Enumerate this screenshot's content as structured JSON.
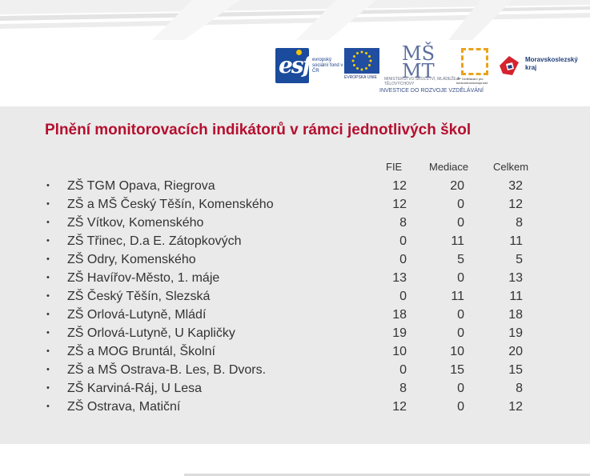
{
  "header": {
    "esf_logo": {
      "mark": "esf",
      "text": "evropský sociální fond v ČR"
    },
    "eu_logo": {
      "label": "EVROPSKÁ UNIE"
    },
    "msmt_logo": {
      "text": "MINISTERSTVO ŠKOLSTVÍ, MLÁDEŽE A TĚLOVÝCHOVY",
      "tagline": "INVESTICE DO ROZVOJE VZDĚLÁVÁNÍ"
    },
    "op_logo": {
      "text": "OP Vzdělávání pro konkurenceschopnost"
    },
    "msk_logo": {
      "text_line1": "Moravskoslezský",
      "text_line2": "kraj"
    }
  },
  "title": "Plnění monitorovacích indikátorů v rámci jednotlivých škol",
  "columns": {
    "fie": "FIE",
    "mediace": "Mediace",
    "celkem": "Celkem"
  },
  "schools": [
    {
      "name": "ZŠ TGM Opava, Riegrova",
      "fie": "12",
      "mediace": "20",
      "celkem": "32"
    },
    {
      "name": "ZŠ a MŠ Český Těšín, Komenského",
      "fie": "12",
      "mediace": "0",
      "celkem": "12"
    },
    {
      "name": "ZŠ Vítkov, Komenského",
      "fie": "8",
      "mediace": "0",
      "celkem": "8"
    },
    {
      "name": "ZŠ Třinec, D.a E. Zátopkových",
      "fie": "0",
      "mediace": "11",
      "celkem": "11"
    },
    {
      "name": "ZŠ Odry, Komenského",
      "fie": "0",
      "mediace": "5",
      "celkem": "5"
    },
    {
      "name": "ZŠ Havířov-Město, 1. máje",
      "fie": "13",
      "mediace": "0",
      "celkem": "13"
    },
    {
      "name": "ZŠ Český Těšín, Slezská",
      "fie": "0",
      "mediace": "11",
      "celkem": "11"
    },
    {
      "name": "ZŠ Orlová-Lutyně, Mládí",
      "fie": "18",
      "mediace": "0",
      "celkem": "18"
    },
    {
      "name": "ZŠ Orlová-Lutyně, U Kapličky",
      "fie": "19",
      "mediace": "0",
      "celkem": "19"
    },
    {
      "name": "ZŠ a MOG Bruntál, Školní",
      "fie": "10",
      "mediace": "10",
      "celkem": "20"
    },
    {
      "name": "ZŠ a MŠ Ostrava-B. Les, B. Dvors.",
      "fie": "0",
      "mediace": "15",
      "celkem": "15"
    },
    {
      "name": "ZŠ Karviná-Ráj, U Lesa",
      "fie": "8",
      "mediace": "0",
      "celkem": "8"
    },
    {
      "name": "ZŠ Ostrava, Matiční",
      "fie": "12",
      "mediace": "0",
      "celkem": "12"
    }
  ],
  "bullet_glyph": "•",
  "colors": {
    "title": "#b50f2f",
    "panel": "#eaeaea",
    "text": "#333333"
  }
}
